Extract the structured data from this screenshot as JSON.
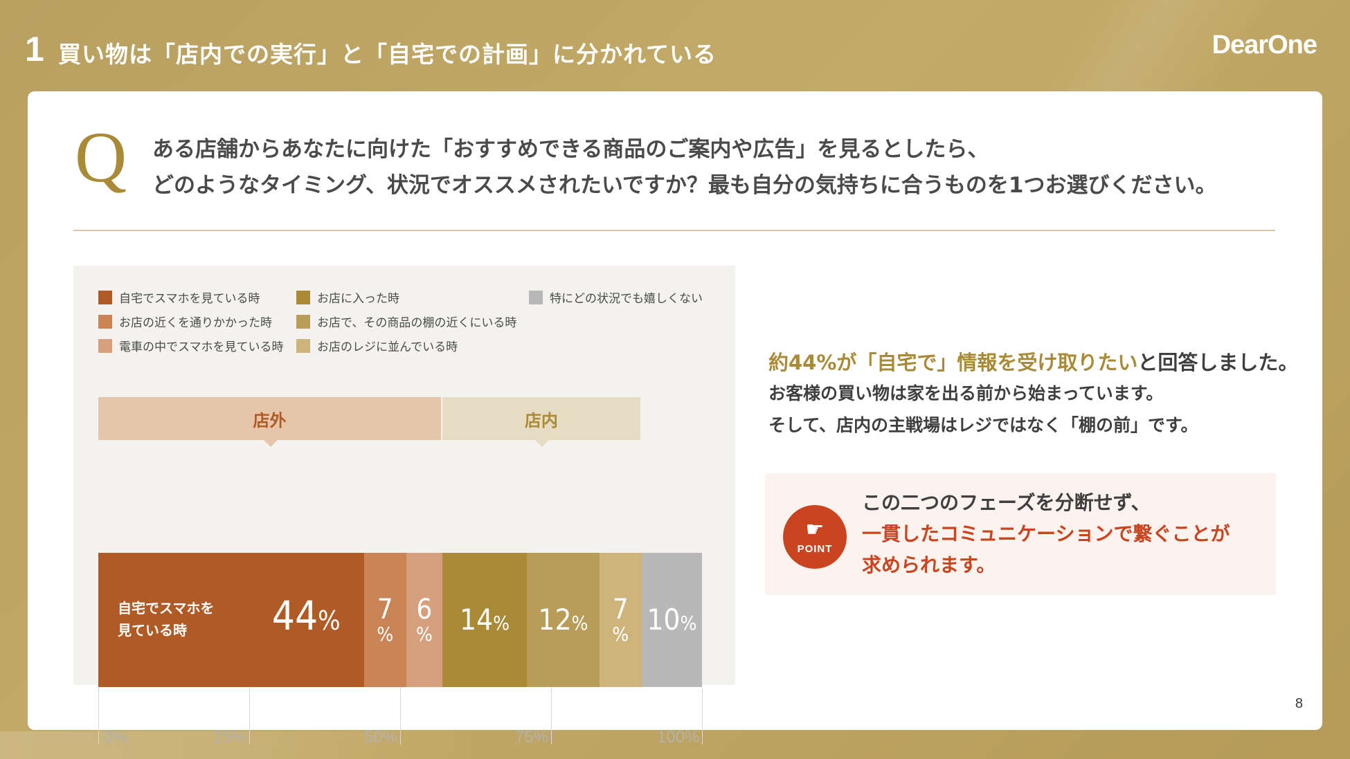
{
  "header": {
    "section_number": "1",
    "title": "買い物は「店内での実行」と「自宅での計画」に分かれている",
    "logo": "DearOne"
  },
  "question": {
    "letter": "Q",
    "line1": "ある店舗からあなたに向けた「おすすめできる商品のご案内や広告」を見るとしたら、",
    "line2": "どのようなタイミング、状況でオススメされたいですか？最も自分の気持ちに合うものを1つお選びください。"
  },
  "chart_data": {
    "type": "bar",
    "orientation": "horizontal-stacked-100",
    "legend": [
      {
        "label": "自宅でスマホを見ている時",
        "color": "#b05a26"
      },
      {
        "label": "お店の近くを通りかかった時",
        "color": "#c98354"
      },
      {
        "label": "電車の中でスマホを見ている時",
        "color": "#d7a07c"
      },
      {
        "label": "お店に入った時",
        "color": "#a88a37"
      },
      {
        "label": "お店で、その商品の棚の近くにいる時",
        "color": "#b99c58"
      },
      {
        "label": "お店のレジに並んでいる時",
        "color": "#cdb47b"
      },
      {
        "label": "特にどの状況でも嬉しくない",
        "color": "#b8b8b8"
      }
    ],
    "series": [
      {
        "name": "自宅でスマホを見ている時",
        "value": 44,
        "label": "44",
        "inner_label": "自宅でスマホを\n見ている時"
      },
      {
        "name": "お店の近くを通りかかった時",
        "value": 7,
        "label": "7"
      },
      {
        "name": "電車の中でスマホを見ている時",
        "value": 6,
        "label": "6"
      },
      {
        "name": "お店に入った時",
        "value": 14,
        "label": "14"
      },
      {
        "name": "お店で、その商品の棚の近くにいる時",
        "value": 12,
        "label": "12"
      },
      {
        "name": "お店のレジに並んでいる時",
        "value": 7,
        "label": "7"
      },
      {
        "name": "特にどの状況でも嬉しくない",
        "value": 10,
        "label": "10"
      }
    ],
    "unit": "%",
    "phases": [
      {
        "label": "店外",
        "from": 0,
        "to": 57,
        "color": "#e5c6a8",
        "text_color": "#b05a26"
      },
      {
        "label": "店内",
        "from": 57,
        "to": 90,
        "color": "#e6dcc4",
        "text_color": "#a88a37"
      }
    ],
    "xlim": [
      0,
      100
    ],
    "ticks": [
      {
        "value": 0,
        "label": "0%"
      },
      {
        "value": 25,
        "label": "25%"
      },
      {
        "value": 50,
        "label": "50%"
      },
      {
        "value": 75,
        "label": "75%"
      },
      {
        "value": 100,
        "label": "100%"
      }
    ]
  },
  "summary": {
    "hl1": "約44%が「自宅で」情報を受け取りたい",
    "rest1": "と回答しました。",
    "line2": "お客様の買い物は家を出る前から始まっています。",
    "line3": "そして、店内の主戦場はレジではなく「棚の前」です。"
  },
  "point": {
    "badge": "POINT",
    "hand": "☛",
    "line1": "この二つのフェーズを分断せず、",
    "line2": "一貫したコミュニケーションで繋ぐことが",
    "line3": "求められます。"
  },
  "footer": {
    "page_number": "8"
  }
}
